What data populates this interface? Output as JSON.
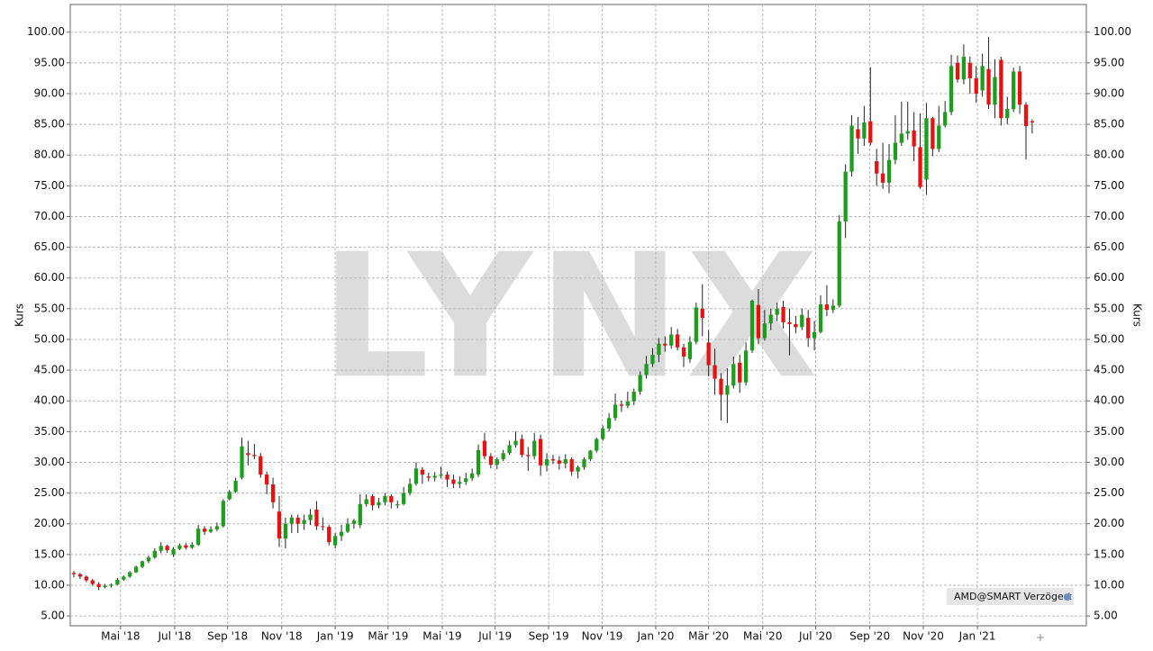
{
  "chart_data": {
    "type": "candlestick",
    "watermark": "LYNX",
    "ylabel": "Kurs",
    "legend": "AMD@SMART Verzögert",
    "up_color": "#1c9e1c",
    "down_color": "#e81010",
    "grid": true,
    "ylim": [
      3.4,
      104.5
    ],
    "yticks": [
      {
        "value": 5,
        "label": "5.00"
      },
      {
        "value": 10,
        "label": "10.00"
      },
      {
        "value": 15,
        "label": "15.00"
      },
      {
        "value": 20,
        "label": "20.00"
      },
      {
        "value": 25,
        "label": "25.00"
      },
      {
        "value": 30,
        "label": "30.00"
      },
      {
        "value": 35,
        "label": "35.00"
      },
      {
        "value": 40,
        "label": "40.00"
      },
      {
        "value": 45,
        "label": "45.00"
      },
      {
        "value": 50,
        "label": "50.00"
      },
      {
        "value": 55,
        "label": "55.00"
      },
      {
        "value": 60,
        "label": "60.00"
      },
      {
        "value": 65,
        "label": "65.00"
      },
      {
        "value": 70,
        "label": "70.00"
      },
      {
        "value": 75,
        "label": "75.00"
      },
      {
        "value": 80,
        "label": "80.00"
      },
      {
        "value": 85,
        "label": "85.00"
      },
      {
        "value": 90,
        "label": "90.00"
      },
      {
        "value": 95,
        "label": "95.00"
      },
      {
        "value": 100,
        "label": "100.00"
      }
    ],
    "xlim": [
      -0.58,
      162.7
    ],
    "xticks": [
      {
        "value": 7.5,
        "label": "Mai '18"
      },
      {
        "value": 16.2,
        "label": "Jul '18"
      },
      {
        "value": 24.7,
        "label": "Sep '18"
      },
      {
        "value": 33.4,
        "label": "Nov '18"
      },
      {
        "value": 42.0,
        "label": "Jan '19"
      },
      {
        "value": 50.5,
        "label": "Mär '19"
      },
      {
        "value": 59.2,
        "label": "Mai '19"
      },
      {
        "value": 67.7,
        "label": "Jul '19"
      },
      {
        "value": 76.3,
        "label": "Sep '19"
      },
      {
        "value": 84.9,
        "label": "Nov '19"
      },
      {
        "value": 93.5,
        "label": "Jan '20"
      },
      {
        "value": 102.0,
        "label": "Mär '20"
      },
      {
        "value": 110.7,
        "label": "Mai '20"
      },
      {
        "value": 119.2,
        "label": "Jul '20"
      },
      {
        "value": 127.9,
        "label": "Sep '20"
      },
      {
        "value": 136.5,
        "label": "Nov '20"
      },
      {
        "value": 145.2,
        "label": "Jan '21"
      }
    ],
    "ohlc": [
      [
        12,
        12.3,
        11.3,
        11.8
      ],
      [
        11.8,
        12,
        11,
        11.4
      ],
      [
        11.4,
        11.6,
        10.5,
        10.8
      ],
      [
        10.8,
        11,
        9.9,
        10.2
      ],
      [
        10.2,
        10.5,
        9.2,
        9.7
      ],
      [
        9.7,
        10.2,
        9.5,
        9.9
      ],
      [
        9.9,
        10.3,
        9.6,
        10.1
      ],
      [
        10.1,
        11.2,
        10,
        10.9
      ],
      [
        10.9,
        11.6,
        10.7,
        11.4
      ],
      [
        11.4,
        12.3,
        11.2,
        12.1
      ],
      [
        12.1,
        13.2,
        12,
        13
      ],
      [
        13,
        14,
        12.8,
        13.9
      ],
      [
        13.9,
        14.8,
        13.6,
        14.5
      ],
      [
        14.5,
        16,
        14.3,
        15.6
      ],
      [
        15.6,
        17,
        15.2,
        16.4
      ],
      [
        16.4,
        16.6,
        15.3,
        15.7
      ],
      [
        15,
        16.2,
        14.6,
        15.9
      ],
      [
        15.9,
        16.8,
        15.7,
        16.5
      ],
      [
        16.5,
        16.9,
        15.8,
        16.1
      ],
      [
        16.1,
        17,
        15.9,
        16.6
      ],
      [
        16.6,
        19.8,
        16.4,
        19.2
      ],
      [
        19.2,
        19.6,
        18.2,
        18.7
      ],
      [
        18.7,
        19.6,
        18.5,
        19.1
      ],
      [
        19.1,
        20.2,
        18.8,
        19.6
      ],
      [
        19.6,
        24,
        19.4,
        23.7
      ],
      [
        24,
        25.5,
        23.8,
        25.2
      ],
      [
        25.2,
        27.5,
        25,
        27
      ],
      [
        27.5,
        34,
        27.2,
        32.6
      ],
      [
        31.5,
        33.5,
        29.5,
        31.2
      ],
      [
        31.2,
        33,
        30.5,
        31
      ],
      [
        31,
        31.5,
        27.5,
        28
      ],
      [
        28,
        28.5,
        24.8,
        26.4
      ],
      [
        26.4,
        27.5,
        22.5,
        23.5
      ],
      [
        22,
        24.5,
        16.2,
        17.6
      ],
      [
        17.6,
        21,
        16,
        20
      ],
      [
        20,
        21.5,
        18.5,
        21
      ],
      [
        21,
        21.5,
        18.5,
        20
      ],
      [
        20,
        21.5,
        19,
        20.6
      ],
      [
        20.6,
        22.4,
        19.8,
        21.5
      ],
      [
        22.3,
        23.7,
        19,
        19.6
      ],
      [
        19.6,
        21,
        18.9,
        19.5
      ],
      [
        19.5,
        19.8,
        16.5,
        17
      ],
      [
        16.5,
        18.5,
        16,
        18
      ],
      [
        18,
        19.8,
        17.2,
        18.7
      ],
      [
        18.7,
        20.9,
        18.5,
        20
      ],
      [
        20,
        20.8,
        19.2,
        20.5
      ],
      [
        19.8,
        24.8,
        19.3,
        23.2
      ],
      [
        23.2,
        24.8,
        22.8,
        24
      ],
      [
        24.5,
        24.8,
        22.2,
        23
      ],
      [
        23,
        24.2,
        22.5,
        23.5
      ],
      [
        23.5,
        25,
        23,
        24.5
      ],
      [
        24.5,
        24.8,
        22.5,
        23.5
      ],
      [
        23,
        23.8,
        22.5,
        23.2
      ],
      [
        23.2,
        26,
        23,
        25
      ],
      [
        25,
        27.4,
        24.6,
        26.5
      ],
      [
        26.5,
        30,
        26.2,
        29
      ],
      [
        28.8,
        29.2,
        26.5,
        28
      ],
      [
        27.7,
        28.3,
        26.9,
        27.5
      ],
      [
        27.5,
        28.4,
        26.9,
        27.8
      ],
      [
        27.8,
        29.3,
        27.4,
        28
      ],
      [
        28,
        28.5,
        26,
        27.2
      ],
      [
        27.2,
        28,
        25.8,
        26.5
      ],
      [
        26.5,
        27.7,
        25.8,
        26.8
      ],
      [
        26.8,
        28.3,
        26.3,
        27.4
      ],
      [
        27.4,
        29,
        27,
        28.2
      ],
      [
        28,
        32.9,
        27.6,
        32
      ],
      [
        33.5,
        34.8,
        30.5,
        31
      ],
      [
        31,
        31.5,
        29,
        29.6
      ],
      [
        29.6,
        30.8,
        28.9,
        30.5
      ],
      [
        30.5,
        32,
        30.2,
        31.5
      ],
      [
        31.5,
        33.5,
        31.2,
        32.8
      ],
      [
        32.8,
        35,
        32.4,
        33.5
      ],
      [
        33.8,
        34.5,
        30.8,
        31.2
      ],
      [
        31.2,
        32.5,
        28.6,
        31
      ],
      [
        31,
        34.8,
        30.5,
        33.5
      ],
      [
        33.8,
        34.5,
        27.8,
        29.5
      ],
      [
        29.5,
        31.5,
        28.5,
        30.5
      ],
      [
        30.5,
        31.2,
        29.7,
        30.3
      ],
      [
        30.3,
        31,
        28.8,
        29.8
      ],
      [
        29.8,
        31.3,
        29,
        30.5
      ],
      [
        30.5,
        30.8,
        27.8,
        28.5
      ],
      [
        28.5,
        29.5,
        27.4,
        29.2
      ],
      [
        29.2,
        30.8,
        28.8,
        30.5
      ],
      [
        30.5,
        32,
        30.2,
        31.9
      ],
      [
        31.9,
        34,
        31.6,
        33.8
      ],
      [
        33.8,
        36,
        33.5,
        35.5
      ],
      [
        35.5,
        38,
        35,
        37.2
      ],
      [
        37.2,
        41.2,
        36.8,
        39.4
      ],
      [
        39.4,
        40,
        38.2,
        39.2
      ],
      [
        39.2,
        41.5,
        38.8,
        39.9
      ],
      [
        39.9,
        42,
        39.3,
        41.5
      ],
      [
        41.5,
        44.8,
        41,
        44.2
      ],
      [
        44.2,
        47.3,
        43.6,
        46
      ],
      [
        46,
        48.6,
        45.5,
        47.5
      ],
      [
        47.5,
        50.2,
        46.3,
        49.3
      ],
      [
        49.3,
        50.5,
        48,
        49
      ],
      [
        49,
        52,
        48.5,
        50.8
      ],
      [
        50.8,
        51.7,
        48.2,
        48.7
      ],
      [
        48.7,
        49.3,
        45.5,
        47.2
      ],
      [
        46.8,
        50.5,
        46.2,
        49.6
      ],
      [
        49.6,
        56,
        49.2,
        55.2
      ],
      [
        55,
        59,
        50.5,
        53.5
      ],
      [
        49.5,
        51.5,
        44,
        45.8
      ],
      [
        45.8,
        48.5,
        41,
        43.6
      ],
      [
        43.6,
        44.5,
        36.8,
        41
      ],
      [
        41,
        45.3,
        36.4,
        42.5
      ],
      [
        42.5,
        47.2,
        42,
        46
      ],
      [
        46.2,
        47.5,
        41.3,
        43
      ],
      [
        43,
        49.5,
        42.5,
        48.2
      ],
      [
        48.2,
        56.5,
        47.8,
        56.3
      ],
      [
        55.6,
        58.2,
        49.2,
        50.2
      ],
      [
        50.2,
        54.8,
        49.8,
        52.6
      ],
      [
        52.6,
        55,
        51.5,
        54
      ],
      [
        54,
        56,
        53,
        55
      ],
      [
        55.3,
        56.3,
        51.8,
        52.8
      ],
      [
        52.8,
        55,
        47.4,
        52.5
      ],
      [
        52.5,
        53.8,
        51,
        52
      ],
      [
        52,
        55,
        51.5,
        54
      ],
      [
        53.5,
        54.8,
        48.8,
        50.2
      ],
      [
        50.2,
        53,
        48.2,
        51.2
      ],
      [
        51.2,
        57.2,
        51,
        55.7
      ],
      [
        55.7,
        58.8,
        53.8,
        54.8
      ],
      [
        54.8,
        56.5,
        54.3,
        55.5
      ],
      [
        55.5,
        70.2,
        55.2,
        69.2
      ],
      [
        69.2,
        78.5,
        66.5,
        77.3
      ],
      [
        77.3,
        86.5,
        76.5,
        84.8
      ],
      [
        84.2,
        86.2,
        80.2,
        82.7
      ],
      [
        82.7,
        88,
        81.5,
        85.3
      ],
      [
        85.5,
        94.3,
        81.6,
        82
      ],
      [
        79,
        81,
        75,
        77
      ],
      [
        77,
        82,
        74.5,
        75.5
      ],
      [
        75.5,
        81.8,
        73.8,
        79.2
      ],
      [
        79.2,
        86.5,
        78.5,
        82
      ],
      [
        82,
        88.7,
        81.5,
        83.5
      ],
      [
        83.5,
        88.7,
        82.5,
        83.9
      ],
      [
        84,
        87,
        79,
        81.4
      ],
      [
        81.3,
        86.8,
        74.5,
        74.8
      ],
      [
        76,
        88.5,
        73.5,
        86
      ],
      [
        86,
        86.2,
        79.8,
        81
      ],
      [
        81,
        88,
        80.5,
        84.8
      ],
      [
        84.8,
        88.8,
        84.5,
        87
      ],
      [
        87,
        96.3,
        86.5,
        94.5
      ],
      [
        95,
        96.2,
        91.8,
        92.3
      ],
      [
        92.3,
        98,
        91.5,
        96
      ],
      [
        95,
        96,
        90,
        92.5
      ],
      [
        92.5,
        94.5,
        88.5,
        90
      ],
      [
        90.5,
        96.5,
        89.5,
        94.5
      ],
      [
        94,
        99.2,
        87.5,
        88.2
      ],
      [
        88.2,
        95.6,
        86,
        92.7
      ],
      [
        95.5,
        96,
        84.8,
        86
      ],
      [
        86,
        89.5,
        85,
        87.5
      ],
      [
        87.5,
        94.2,
        87,
        93.6
      ],
      [
        93.6,
        94.5,
        86.7,
        88.2
      ],
      [
        88.2,
        88.6,
        79.3,
        84.7
      ],
      [
        85.5,
        85.8,
        83.5,
        85.3
      ]
    ]
  }
}
